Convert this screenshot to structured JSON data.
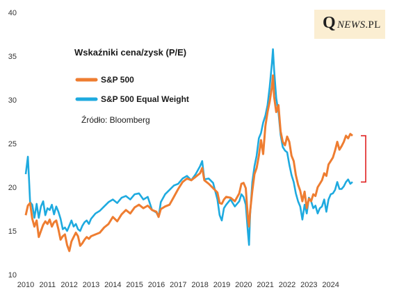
{
  "logo": {
    "initial": "Q",
    "brand": "NEWS",
    "suffix": ".PL"
  },
  "chart_data": {
    "type": "line",
    "title": "Wskaźniki  cena/zysk (P/E)",
    "source": "Źródło: Bloomberg",
    "xlabel": "",
    "ylabel": "",
    "xlim": [
      2010,
      2025.6
    ],
    "ylim": [
      10,
      40
    ],
    "x_ticks": [
      "2010",
      "2011",
      "2012",
      "2013",
      "2014",
      "2015",
      "2016",
      "2017",
      "2018",
      "2019",
      "2020",
      "2021",
      "2022",
      "2023",
      "2024"
    ],
    "y_ticks": [
      "10",
      "15",
      "20",
      "25",
      "30",
      "35",
      "40"
    ],
    "grid": false,
    "legend_position": "top-left",
    "bracket_color": "#e02020",
    "series": [
      {
        "name": "S&P 500",
        "color": "#ee7d31",
        "points": [
          [
            2010.0,
            16.8
          ],
          [
            2010.1,
            17.9
          ],
          [
            2010.2,
            18.2
          ],
          [
            2010.3,
            16.4
          ],
          [
            2010.4,
            15.5
          ],
          [
            2010.5,
            16.2
          ],
          [
            2010.6,
            14.3
          ],
          [
            2010.7,
            15.0
          ],
          [
            2010.8,
            15.7
          ],
          [
            2010.9,
            16.1
          ],
          [
            2011.0,
            15.8
          ],
          [
            2011.1,
            16.3
          ],
          [
            2011.2,
            15.5
          ],
          [
            2011.3,
            16.0
          ],
          [
            2011.4,
            16.2
          ],
          [
            2011.5,
            15.2
          ],
          [
            2011.6,
            14.0
          ],
          [
            2011.7,
            14.4
          ],
          [
            2011.8,
            14.6
          ],
          [
            2011.9,
            13.4
          ],
          [
            2012.0,
            12.7
          ],
          [
            2012.1,
            13.8
          ],
          [
            2012.2,
            14.3
          ],
          [
            2012.3,
            14.8
          ],
          [
            2012.4,
            14.4
          ],
          [
            2012.5,
            13.3
          ],
          [
            2012.6,
            13.6
          ],
          [
            2012.7,
            14.0
          ],
          [
            2012.8,
            14.3
          ],
          [
            2012.9,
            14.1
          ],
          [
            2013.0,
            14.4
          ],
          [
            2013.2,
            14.6
          ],
          [
            2013.4,
            14.8
          ],
          [
            2013.6,
            15.4
          ],
          [
            2013.8,
            15.8
          ],
          [
            2014.0,
            16.6
          ],
          [
            2014.2,
            16.1
          ],
          [
            2014.4,
            16.9
          ],
          [
            2014.6,
            17.4
          ],
          [
            2014.8,
            17.0
          ],
          [
            2015.0,
            17.7
          ],
          [
            2015.2,
            18.0
          ],
          [
            2015.4,
            17.6
          ],
          [
            2015.6,
            17.9
          ],
          [
            2015.8,
            17.4
          ],
          [
            2016.0,
            17.2
          ],
          [
            2016.1,
            16.6
          ],
          [
            2016.2,
            17.5
          ],
          [
            2016.4,
            17.8
          ],
          [
            2016.6,
            18.0
          ],
          [
            2016.8,
            18.9
          ],
          [
            2017.0,
            19.8
          ],
          [
            2017.2,
            20.6
          ],
          [
            2017.4,
            21.0
          ],
          [
            2017.6,
            20.8
          ],
          [
            2017.8,
            21.2
          ],
          [
            2018.0,
            21.6
          ],
          [
            2018.1,
            22.2
          ],
          [
            2018.2,
            20.8
          ],
          [
            2018.4,
            20.4
          ],
          [
            2018.6,
            19.9
          ],
          [
            2018.8,
            19.4
          ],
          [
            2018.9,
            18.2
          ],
          [
            2019.0,
            18.1
          ],
          [
            2019.1,
            18.6
          ],
          [
            2019.2,
            18.9
          ],
          [
            2019.4,
            18.8
          ],
          [
            2019.6,
            18.4
          ],
          [
            2019.8,
            19.3
          ],
          [
            2019.9,
            20.4
          ],
          [
            2020.0,
            20.5
          ],
          [
            2020.1,
            19.9
          ],
          [
            2020.2,
            16.4
          ],
          [
            2020.25,
            15.5
          ],
          [
            2020.3,
            17.2
          ],
          [
            2020.4,
            19.6
          ],
          [
            2020.5,
            21.5
          ],
          [
            2020.6,
            22.2
          ],
          [
            2020.7,
            23.6
          ],
          [
            2020.8,
            25.4
          ],
          [
            2020.9,
            23.8
          ],
          [
            2021.0,
            27.0
          ],
          [
            2021.1,
            28.6
          ],
          [
            2021.2,
            29.8
          ],
          [
            2021.3,
            31.5
          ],
          [
            2021.35,
            32.8
          ],
          [
            2021.4,
            30.4
          ],
          [
            2021.5,
            28.6
          ],
          [
            2021.6,
            29.4
          ],
          [
            2021.7,
            26.4
          ],
          [
            2021.8,
            25.2
          ],
          [
            2021.9,
            24.8
          ],
          [
            2022.0,
            25.8
          ],
          [
            2022.1,
            25.2
          ],
          [
            2022.2,
            23.6
          ],
          [
            2022.3,
            23.0
          ],
          [
            2022.4,
            21.4
          ],
          [
            2022.5,
            20.3
          ],
          [
            2022.6,
            19.6
          ],
          [
            2022.7,
            18.4
          ],
          [
            2022.8,
            19.5
          ],
          [
            2022.9,
            17.6
          ],
          [
            2023.0,
            18.7
          ],
          [
            2023.1,
            18.4
          ],
          [
            2023.2,
            19.2
          ],
          [
            2023.3,
            19.0
          ],
          [
            2023.4,
            20.0
          ],
          [
            2023.5,
            20.4
          ],
          [
            2023.6,
            20.8
          ],
          [
            2023.7,
            21.6
          ],
          [
            2023.8,
            21.3
          ],
          [
            2023.9,
            22.6
          ],
          [
            2024.0,
            23.0
          ],
          [
            2024.1,
            23.4
          ],
          [
            2024.2,
            24.2
          ],
          [
            2024.3,
            25.2
          ],
          [
            2024.4,
            24.3
          ],
          [
            2024.5,
            24.7
          ],
          [
            2024.6,
            25.2
          ],
          [
            2024.7,
            25.9
          ],
          [
            2024.8,
            25.6
          ],
          [
            2024.9,
            26.1
          ],
          [
            2025.0,
            25.9
          ]
        ]
      },
      {
        "name": "S&P 500 Equal Weight",
        "color": "#1eaadf",
        "points": [
          [
            2010.0,
            21.5
          ],
          [
            2010.1,
            23.5
          ],
          [
            2010.15,
            21.0
          ],
          [
            2010.2,
            18.3
          ],
          [
            2010.3,
            18.0
          ],
          [
            2010.4,
            16.5
          ],
          [
            2010.5,
            18.1
          ],
          [
            2010.6,
            16.5
          ],
          [
            2010.7,
            17.8
          ],
          [
            2010.8,
            18.4
          ],
          [
            2010.9,
            16.8
          ],
          [
            2011.0,
            17.6
          ],
          [
            2011.1,
            17.4
          ],
          [
            2011.2,
            18.0
          ],
          [
            2011.3,
            16.9
          ],
          [
            2011.4,
            17.8
          ],
          [
            2011.5,
            17.2
          ],
          [
            2011.6,
            16.4
          ],
          [
            2011.7,
            15.2
          ],
          [
            2011.8,
            15.4
          ],
          [
            2011.9,
            15.0
          ],
          [
            2012.0,
            15.6
          ],
          [
            2012.1,
            16.2
          ],
          [
            2012.2,
            15.5
          ],
          [
            2012.3,
            15.8
          ],
          [
            2012.4,
            15.2
          ],
          [
            2012.5,
            15.0
          ],
          [
            2012.6,
            15.6
          ],
          [
            2012.7,
            16.0
          ],
          [
            2012.8,
            16.2
          ],
          [
            2012.9,
            15.8
          ],
          [
            2013.0,
            16.4
          ],
          [
            2013.2,
            17.0
          ],
          [
            2013.4,
            17.3
          ],
          [
            2013.6,
            17.8
          ],
          [
            2013.8,
            18.3
          ],
          [
            2014.0,
            18.6
          ],
          [
            2014.2,
            18.2
          ],
          [
            2014.4,
            18.8
          ],
          [
            2014.6,
            19.0
          ],
          [
            2014.8,
            18.6
          ],
          [
            2015.0,
            19.2
          ],
          [
            2015.2,
            19.3
          ],
          [
            2015.4,
            18.6
          ],
          [
            2015.6,
            18.9
          ],
          [
            2015.8,
            17.4
          ],
          [
            2016.0,
            17.1
          ],
          [
            2016.1,
            16.6
          ],
          [
            2016.2,
            18.3
          ],
          [
            2016.4,
            19.2
          ],
          [
            2016.6,
            19.7
          ],
          [
            2016.8,
            20.2
          ],
          [
            2017.0,
            20.4
          ],
          [
            2017.2,
            21.0
          ],
          [
            2017.4,
            21.3
          ],
          [
            2017.6,
            20.8
          ],
          [
            2017.8,
            21.5
          ],
          [
            2018.0,
            22.4
          ],
          [
            2018.1,
            23.0
          ],
          [
            2018.2,
            20.9
          ],
          [
            2018.4,
            21.0
          ],
          [
            2018.6,
            20.5
          ],
          [
            2018.8,
            18.6
          ],
          [
            2018.9,
            16.8
          ],
          [
            2019.0,
            16.2
          ],
          [
            2019.1,
            17.6
          ],
          [
            2019.2,
            18.0
          ],
          [
            2019.4,
            18.6
          ],
          [
            2019.6,
            17.8
          ],
          [
            2019.8,
            18.4
          ],
          [
            2019.9,
            19.2
          ],
          [
            2020.0,
            18.9
          ],
          [
            2020.1,
            18.0
          ],
          [
            2020.2,
            14.8
          ],
          [
            2020.25,
            13.4
          ],
          [
            2020.3,
            16.8
          ],
          [
            2020.4,
            20.6
          ],
          [
            2020.5,
            22.4
          ],
          [
            2020.6,
            23.6
          ],
          [
            2020.7,
            25.6
          ],
          [
            2020.8,
            26.2
          ],
          [
            2020.9,
            27.4
          ],
          [
            2021.0,
            28.2
          ],
          [
            2021.1,
            29.4
          ],
          [
            2021.2,
            31.5
          ],
          [
            2021.3,
            34.2
          ],
          [
            2021.35,
            35.8
          ],
          [
            2021.4,
            33.5
          ],
          [
            2021.5,
            30.2
          ],
          [
            2021.6,
            28.6
          ],
          [
            2021.7,
            26.0
          ],
          [
            2021.8,
            24.6
          ],
          [
            2021.9,
            24.2
          ],
          [
            2022.0,
            24.0
          ],
          [
            2022.1,
            22.6
          ],
          [
            2022.2,
            21.4
          ],
          [
            2022.3,
            20.6
          ],
          [
            2022.4,
            19.3
          ],
          [
            2022.5,
            18.4
          ],
          [
            2022.6,
            17.8
          ],
          [
            2022.7,
            16.3
          ],
          [
            2022.8,
            18.0
          ],
          [
            2022.9,
            17.0
          ],
          [
            2023.0,
            18.8
          ],
          [
            2023.1,
            18.4
          ],
          [
            2023.2,
            17.6
          ],
          [
            2023.3,
            17.9
          ],
          [
            2023.4,
            17.0
          ],
          [
            2023.5,
            17.6
          ],
          [
            2023.6,
            17.8
          ],
          [
            2023.7,
            18.6
          ],
          [
            2023.8,
            17.2
          ],
          [
            2023.9,
            18.6
          ],
          [
            2024.0,
            19.2
          ],
          [
            2024.1,
            19.3
          ],
          [
            2024.2,
            19.7
          ],
          [
            2024.3,
            20.6
          ],
          [
            2024.4,
            19.8
          ],
          [
            2024.5,
            19.8
          ],
          [
            2024.6,
            20.1
          ],
          [
            2024.7,
            20.6
          ],
          [
            2024.8,
            20.9
          ],
          [
            2024.9,
            20.4
          ],
          [
            2025.0,
            20.6
          ]
        ]
      }
    ]
  }
}
